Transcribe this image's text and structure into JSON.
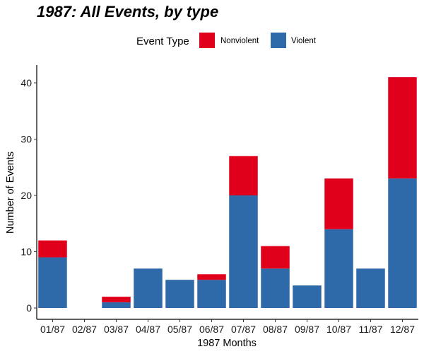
{
  "legend": {
    "title": "Event Type"
  },
  "colors": {
    "nonviolent": "#E0001B",
    "violent": "#2E6AAA"
  },
  "chart_data": {
    "type": "bar",
    "stacked": true,
    "title": "1987: All Events, by type",
    "xlabel": "1987 Months",
    "ylabel": "Number of Events",
    "categories": [
      "01/87",
      "02/87",
      "03/87",
      "04/87",
      "05/87",
      "06/87",
      "07/87",
      "08/87",
      "09/87",
      "10/87",
      "11/87",
      "12/87"
    ],
    "series": [
      {
        "name": "Violent",
        "color": "#2E6AAA",
        "values": [
          9,
          0,
          1,
          7,
          5,
          5,
          20,
          7,
          4,
          14,
          7,
          23
        ]
      },
      {
        "name": "Nonviolent",
        "color": "#E0001B",
        "values": [
          3,
          0,
          1,
          0,
          0,
          1,
          7,
          4,
          0,
          9,
          0,
          18
        ]
      }
    ],
    "ylim": [
      -2,
      43
    ],
    "yticks": [
      0,
      10,
      20,
      30,
      40
    ],
    "legend_position": "top",
    "grid": false
  }
}
